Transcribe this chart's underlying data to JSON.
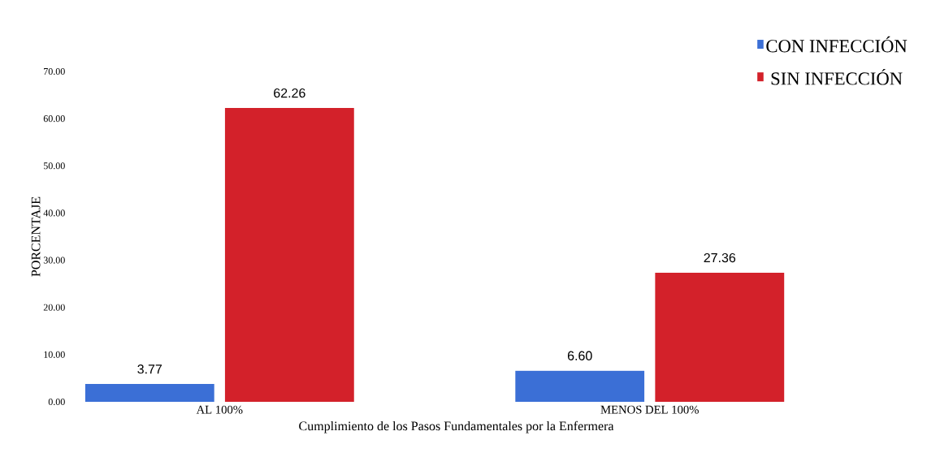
{
  "chart_data": {
    "type": "bar",
    "xlabel": "Cumplimiento  de los Pasos Fundamentales por la Enfermera",
    "ylabel": "PORCENTAJE",
    "categories": [
      "AL 100%",
      "MENOS DEL 100%"
    ],
    "series": [
      {
        "name": "CON  INFECCIÓN",
        "color": "#3b6fd6",
        "values": [
          3.77,
          6.6
        ],
        "value_labels": [
          "3.77",
          "6.60"
        ]
      },
      {
        "name": "SIN INFECCIÓN",
        "color": "#d3212a",
        "values": [
          62.26,
          27.36
        ],
        "value_labels": [
          "62.26",
          "27.36"
        ]
      }
    ],
    "ylim": [
      0,
      70
    ],
    "yticks": [
      {
        "value": 0,
        "label": "0.00"
      },
      {
        "value": 10,
        "label": "10.00"
      },
      {
        "value": 20,
        "label": "20.00"
      },
      {
        "value": 30,
        "label": "30.00"
      },
      {
        "value": 40,
        "label": "40.00"
      },
      {
        "value": 50,
        "label": "50.00"
      },
      {
        "value": 60,
        "label": "60.00"
      },
      {
        "value": 70,
        "label": "70.00"
      }
    ],
    "grid": false,
    "legend": "top right"
  }
}
